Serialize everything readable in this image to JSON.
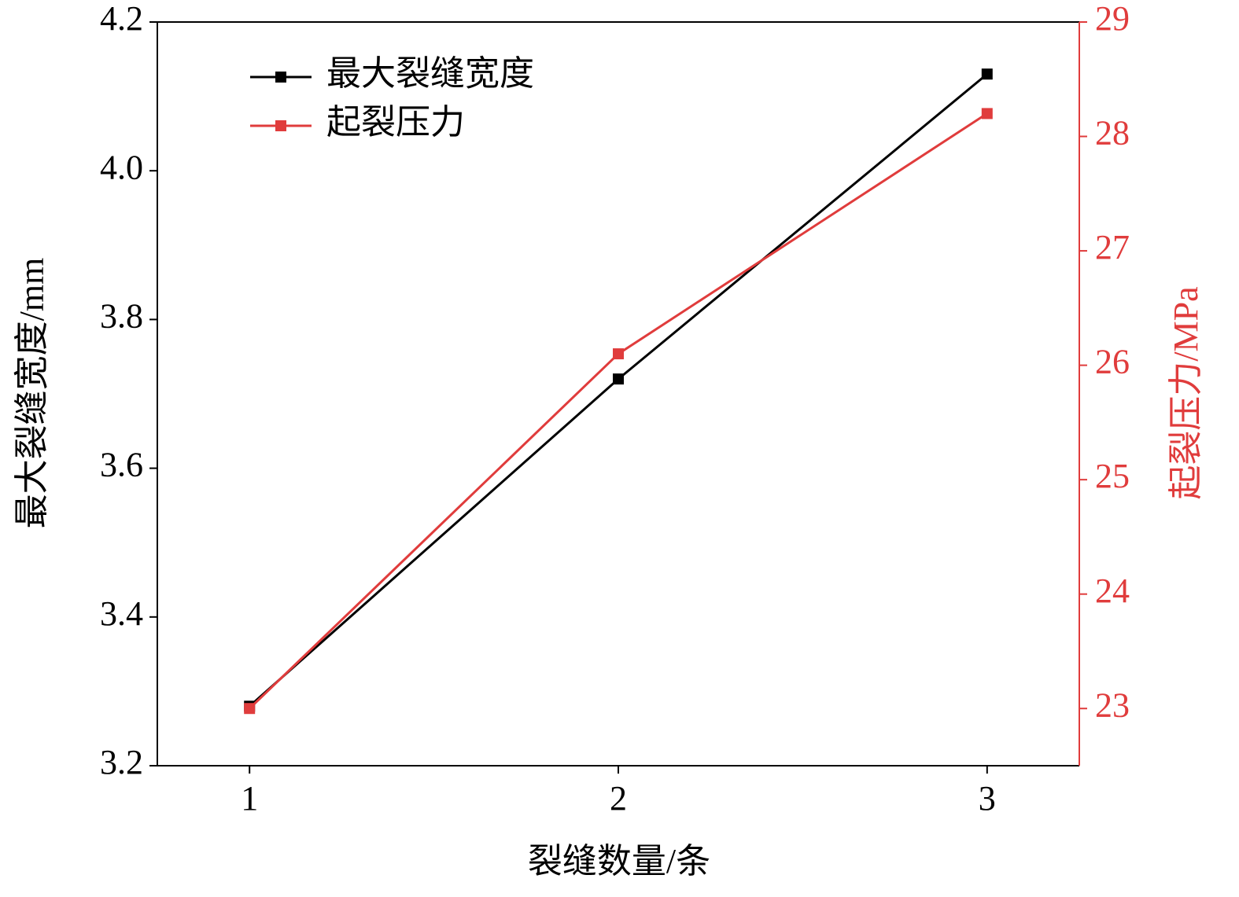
{
  "chart_data": {
    "type": "line",
    "x_label": "裂缝数量/条",
    "y_label": "最大裂缝宽度/mm",
    "y2_label": "起裂压力/MPa",
    "x": [
      1,
      2,
      3
    ],
    "xlim": [
      0.75,
      3.25
    ],
    "xticks": [
      1,
      2,
      3
    ],
    "ylim": [
      3.2,
      4.2
    ],
    "yticks": [
      3.2,
      3.4,
      3.6,
      3.8,
      {
        "value": 4,
        "label": "4.0"
      },
      4.2
    ],
    "y2lim": [
      22.5,
      29
    ],
    "y2ticks": [
      23,
      24,
      25,
      26,
      27,
      28,
      29
    ],
    "y2_color": "#e03c3c",
    "legend": "upper-left",
    "series": [
      {
        "name": "最大裂缝宽度",
        "color": "#000000",
        "values": [
          3.28,
          3.72,
          4.13
        ]
      },
      {
        "name": "起裂压力",
        "color": "#e03c3c",
        "values": [
          23,
          26.1,
          28.2
        ],
        "axis": "y2"
      }
    ]
  }
}
